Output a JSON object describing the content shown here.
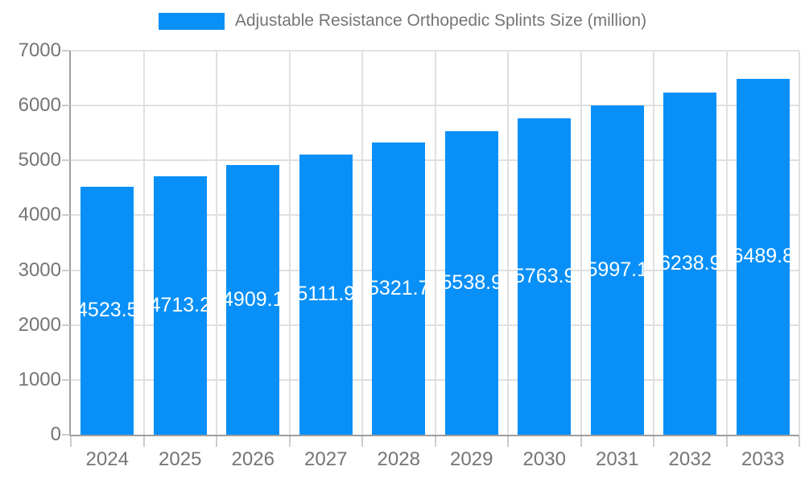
{
  "legend": {
    "label": "Adjustable Resistance Orthopedic Splints Size (million)"
  },
  "colors": {
    "accent": "#0890f8",
    "bar_label": "#ffffff",
    "text_muted": "#757575",
    "gridline": "#e0e0e0",
    "axis_line": "#9e9e9e",
    "tick": "#cccccc",
    "background": "#ffffff"
  },
  "chart_data": {
    "type": "bar",
    "title": "Adjustable Resistance Orthopedic Splints Size (million)",
    "categories": [
      "2024",
      "2025",
      "2026",
      "2027",
      "2028",
      "2029",
      "2030",
      "2031",
      "2032",
      "2033"
    ],
    "values": [
      4523.5,
      4713.2,
      4909.1,
      5111.9,
      5321.7,
      5538.9,
      5763.9,
      5997.1,
      6238.9,
      6489.8
    ],
    "series_name": "Adjustable Resistance Orthopedic Splints Size (million)",
    "xlabel": "",
    "ylabel": "",
    "ylim": [
      0,
      7000
    ],
    "yticks": [
      0,
      1000,
      2000,
      3000,
      4000,
      5000,
      6000,
      7000
    ],
    "grid": true,
    "legend_position": "top-center",
    "bar_color": "#0890f8",
    "bar_label_color": "#ffffff"
  }
}
